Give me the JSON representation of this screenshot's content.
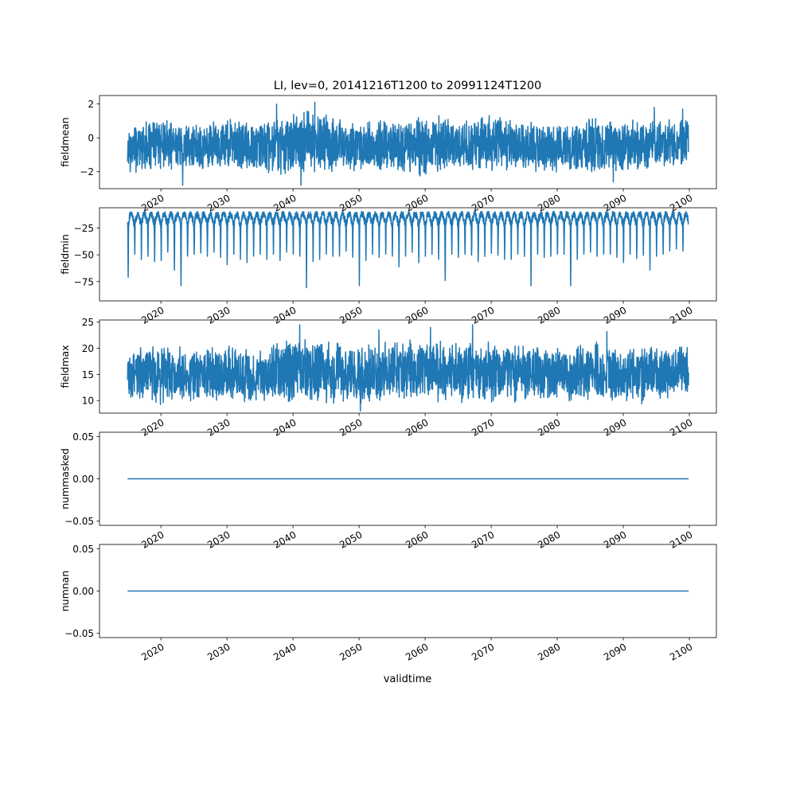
{
  "figure": {
    "title": "LI, lev=0, 20141216T1200 to 20991124T1200",
    "xlabel": "validtime"
  },
  "chart_data": [
    {
      "type": "line",
      "ylabel": "fieldmean",
      "x_range": [
        2014.96,
        2099.9
      ],
      "xlim": [
        2010.7,
        2104.1
      ],
      "ylim": [
        -3.0,
        2.5
      ],
      "yticks": [
        2,
        0,
        -2
      ],
      "xticks": [
        2020,
        2030,
        2040,
        2050,
        2060,
        2070,
        2080,
        2090,
        2100
      ],
      "xtick_labels": [
        "2020",
        "2030",
        "2040",
        "2050",
        "2060",
        "2070",
        "2080",
        "2090",
        "2100"
      ],
      "series": [
        {
          "color": "#1f77b4",
          "envelope": {
            "x": [
              2015,
              2020,
              2025,
              2030,
              2035,
              2040,
              2045,
              2050,
              2055,
              2060,
              2065,
              2070,
              2075,
              2080,
              2085,
              2090,
              2095,
              2099.9
            ],
            "upper": [
              0.9,
              1.2,
              0.9,
              1.3,
              1.0,
              2.0,
              1.5,
              1.0,
              1.3,
              1.4,
              1.2,
              1.4,
              1.2,
              1.0,
              1.4,
              1.2,
              1.0,
              1.3
            ],
            "lower": [
              -2.2,
              -1.9,
              -2.1,
              -2.0,
              -2.2,
              -2.4,
              -2.1,
              -2.0,
              -2.1,
              -2.3,
              -2.0,
              -2.1,
              -2.0,
              -2.1,
              -2.2,
              -2.1,
              -2.0,
              -1.9
            ]
          },
          "peaks": [
            {
              "x": 2043.3,
              "y": 2.1
            },
            {
              "x": 2037.5,
              "y": 2.0
            },
            {
              "x": 2023.3,
              "y": -2.8
            },
            {
              "x": 2041.2,
              "y": -2.8
            },
            {
              "x": 2088.5,
              "y": -2.6
            },
            {
              "x": 2094.7,
              "y": 1.8
            },
            {
              "x": 2099.0,
              "y": 1.7
            }
          ]
        }
      ]
    },
    {
      "type": "line",
      "ylabel": "fieldmin",
      "x_range": [
        2014.96,
        2099.9
      ],
      "xlim": [
        2010.7,
        2104.1
      ],
      "ylim": [
        -93,
        -6
      ],
      "yticks": [
        -25,
        -50,
        -75
      ],
      "xticks": [
        2020,
        2030,
        2040,
        2050,
        2060,
        2070,
        2080,
        2090,
        2100
      ],
      "xtick_labels": [
        "2020",
        "2030",
        "2040",
        "2050",
        "2060",
        "2070",
        "2080",
        "2090",
        "2100"
      ],
      "series": [
        {
          "color": "#1f77b4",
          "seasonal": {
            "period_years": 1,
            "summer_high": -11,
            "base": -20,
            "winter_lows": [
              -47,
              -72,
              -50,
              -55,
              -52,
              -57,
              -56,
              -48,
              -65,
              -80,
              -52,
              -50,
              -49,
              -52,
              -48,
              -53,
              -60,
              -50,
              -55,
              -58,
              -52,
              -50,
              -55,
              -50,
              -56,
              -48,
              -50,
              -52,
              -82,
              -57,
              -55,
              -50,
              -52,
              -52,
              -47,
              -53,
              -80,
              -56,
              -50,
              -53,
              -50,
              -52,
              -62,
              -52,
              -48,
              -58,
              -52,
              -50,
              -55,
              -75,
              -50,
              -53,
              -50,
              -51,
              -57,
              -52,
              -49,
              -51,
              -55,
              -55,
              -50,
              -52,
              -80,
              -50,
              -53,
              -52,
              -50,
              -50,
              -80,
              -55,
              -50,
              -48,
              -52,
              -50,
              -50,
              -53,
              -58,
              -50,
              -54,
              -51,
              -65,
              -52,
              -50,
              -47,
              -45
            ]
          }
        }
      ]
    },
    {
      "type": "line",
      "ylabel": "fieldmax",
      "x_range": [
        2014.96,
        2099.9
      ],
      "xlim": [
        2010.7,
        2104.1
      ],
      "ylim": [
        7.6,
        25.4
      ],
      "yticks": [
        25,
        20,
        15,
        10
      ],
      "xticks": [
        2020,
        2030,
        2040,
        2050,
        2060,
        2070,
        2080,
        2090,
        2100
      ],
      "xtick_labels": [
        "2020",
        "2030",
        "2040",
        "2050",
        "2060",
        "2070",
        "2080",
        "2090",
        "2100"
      ],
      "series": [
        {
          "color": "#1f77b4",
          "envelope": {
            "x": [
              2015,
              2020,
              2025,
              2030,
              2035,
              2040,
              2045,
              2050,
              2055,
              2060,
              2065,
              2070,
              2075,
              2080,
              2085,
              2090,
              2095,
              2099.9
            ],
            "upper": [
              19.5,
              21.5,
              20.0,
              21.0,
              20.5,
              22.5,
              22.0,
              21.0,
              21.5,
              22.0,
              21.5,
              22.0,
              21.5,
              21.0,
              21.5,
              21.0,
              20.5,
              21.0
            ],
            "lower": [
              10.5,
              9.0,
              9.5,
              9.0,
              9.5,
              9.5,
              9.0,
              9.0,
              9.5,
              9.5,
              9.5,
              9.0,
              9.5,
              9.5,
              9.5,
              9.0,
              9.5,
              10.5
            ]
          },
          "peaks": [
            {
              "x": 2041.0,
              "y": 24.5
            },
            {
              "x": 2067.2,
              "y": 24.5
            },
            {
              "x": 2060.8,
              "y": 24.0
            },
            {
              "x": 2050.2,
              "y": 8.0
            },
            {
              "x": 2053.0,
              "y": 23.5
            },
            {
              "x": 2087.5,
              "y": 23.2
            }
          ]
        }
      ]
    },
    {
      "type": "line",
      "ylabel": "nummasked",
      "x_range": [
        2014.96,
        2099.9
      ],
      "xlim": [
        2010.7,
        2104.1
      ],
      "ylim": [
        -0.055,
        0.055
      ],
      "yticks": [
        0.05,
        0.0,
        -0.05
      ],
      "ytick_labels": [
        "0.05",
        "0.00",
        "−0.05"
      ],
      "xticks": [
        2020,
        2030,
        2040,
        2050,
        2060,
        2070,
        2080,
        2090,
        2100
      ],
      "xtick_labels": [
        "2020",
        "2030",
        "2040",
        "2050",
        "2060",
        "2070",
        "2080",
        "2090",
        "2100"
      ],
      "series": [
        {
          "color": "#1f77b4",
          "constant": 0
        }
      ]
    },
    {
      "type": "line",
      "ylabel": "numnan",
      "x_range": [
        2014.96,
        2099.9
      ],
      "xlim": [
        2010.7,
        2104.1
      ],
      "ylim": [
        -0.055,
        0.055
      ],
      "yticks": [
        0.05,
        0.0,
        -0.05
      ],
      "ytick_labels": [
        "0.05",
        "0.00",
        "−0.05"
      ],
      "xticks": [
        2020,
        2030,
        2040,
        2050,
        2060,
        2070,
        2080,
        2090,
        2100
      ],
      "xtick_labels": [
        "2020",
        "2030",
        "2040",
        "2050",
        "2060",
        "2070",
        "2080",
        "2090",
        "2100"
      ],
      "series": [
        {
          "color": "#1f77b4",
          "constant": 0
        }
      ]
    }
  ]
}
